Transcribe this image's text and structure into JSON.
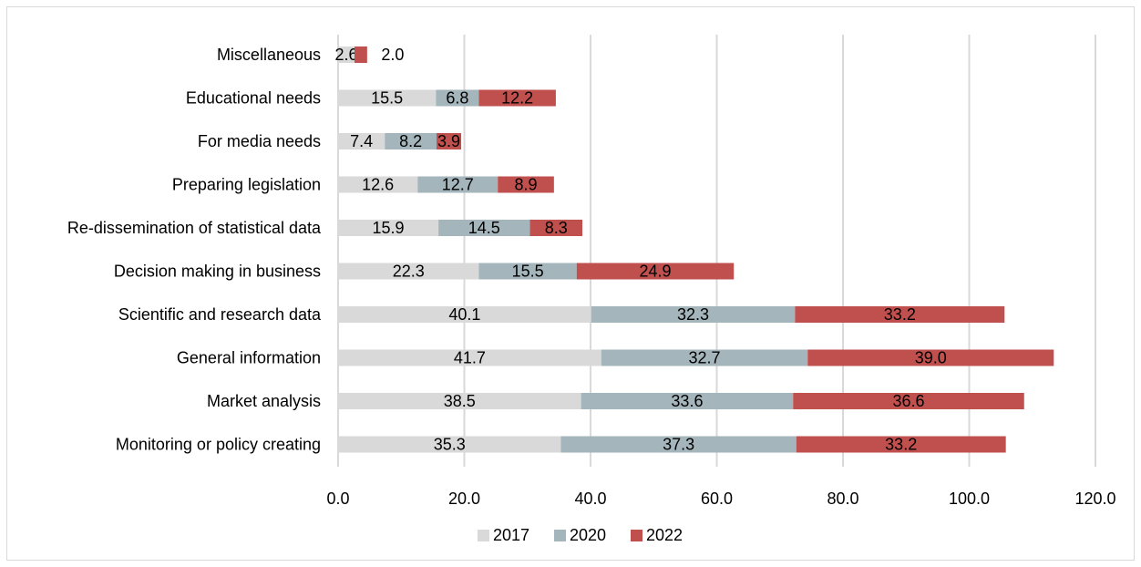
{
  "chart_data": {
    "type": "bar",
    "orientation": "horizontal",
    "stacked": true,
    "categories": [
      "Miscellaneous",
      "Educational needs",
      "For media needs",
      "Preparing legislation",
      "Re-dissemination of statistical data",
      "Decision making in business",
      "Scientific and research data",
      "General information",
      "Market analysis",
      "Monitoring or policy creating"
    ],
    "series": [
      {
        "name": "2017",
        "color": "#d9d9d9",
        "values": [
          2.6,
          15.5,
          7.4,
          12.6,
          15.9,
          22.3,
          40.1,
          41.7,
          38.5,
          35.3
        ],
        "labels": [
          "2.6",
          "15.5",
          "7.4",
          "12.6",
          "15.9",
          "22.3",
          "40.1",
          "41.7",
          "38.5",
          "35.3"
        ]
      },
      {
        "name": "2020",
        "color": "#a5b5bc",
        "values": [
          0,
          6.8,
          8.2,
          12.7,
          14.5,
          15.5,
          32.3,
          32.7,
          33.6,
          37.3
        ],
        "labels": [
          "",
          "6.8",
          "8.2",
          "12.7",
          "14.5",
          "15.5",
          "32.3",
          "32.7",
          "33.6",
          "37.3"
        ]
      },
      {
        "name": "2022",
        "color": "#c0504d",
        "values": [
          2.0,
          12.2,
          3.9,
          8.9,
          8.3,
          24.9,
          33.2,
          39.0,
          36.6,
          33.2
        ],
        "labels": [
          "2.0",
          "12.2",
          "3.9",
          "8.9",
          "8.3",
          "24.9",
          "33.2",
          "39.0",
          "36.6",
          "33.2"
        ]
      }
    ],
    "xlim": [
      0,
      120
    ],
    "xticks": [
      "0.0",
      "20.0",
      "40.0",
      "60.0",
      "80.0",
      "100.0",
      "120.0"
    ],
    "grid": true,
    "legend_position": "bottom"
  }
}
